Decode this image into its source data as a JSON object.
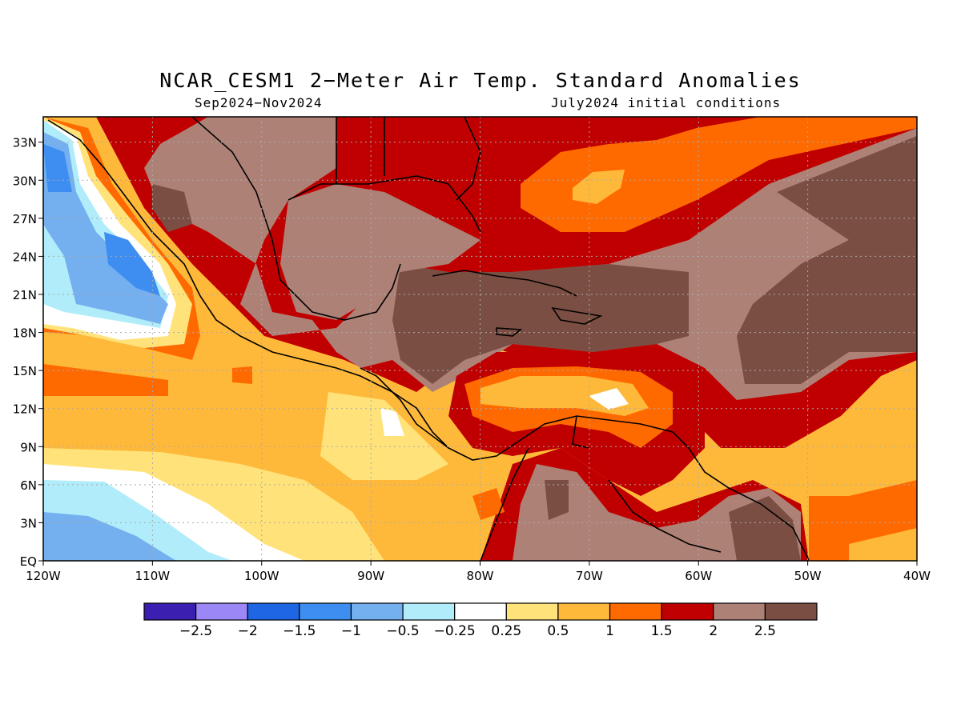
{
  "title": "NCAR_CESM1 2−Meter Air Temp. Standard Anomalies",
  "subtitle_left": "Sep2024−Nov2024",
  "subtitle_right": "July2024 initial conditions",
  "map": {
    "lon_range": [
      -120,
      -40
    ],
    "lat_range": [
      0,
      35
    ],
    "lon_ticks": [
      "120W",
      "110W",
      "100W",
      "90W",
      "80W",
      "70W",
      "60W",
      "50W",
      "40W"
    ],
    "lat_ticks": [
      "EQ",
      "3N",
      "6N",
      "9N",
      "12N",
      "15N",
      "18N",
      "21N",
      "24N",
      "27N",
      "30N",
      "33N"
    ],
    "grid_lines": "dotted"
  },
  "colorbar": {
    "colors": [
      "#3a1fb0",
      "#9b87f5",
      "#1f66e5",
      "#3d8ef0",
      "#74b0f0",
      "#b0ecfa",
      "#ffffff",
      "#ffe37a",
      "#ffb93a",
      "#ff6a00",
      "#c00000",
      "#ae8177",
      "#7a4e42"
    ],
    "labels": [
      "−2.5",
      "−2",
      "−1.5",
      "−1",
      "−0.5",
      "−0.25",
      "0.25",
      "0.5",
      "1",
      "1.5",
      "2",
      "2.5"
    ]
  }
}
